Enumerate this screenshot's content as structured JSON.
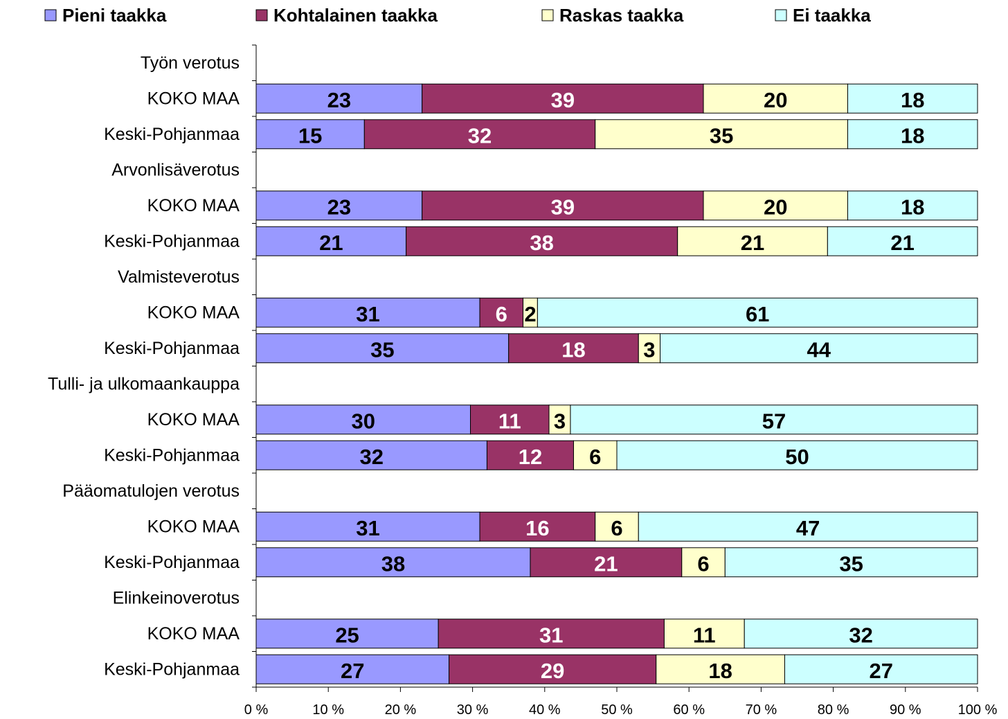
{
  "chart_data": {
    "type": "bar",
    "orientation": "horizontal",
    "stacking": "percent",
    "categories": [
      "Työn verotus",
      "KOKO MAA",
      "Keski-Pohjanmaa",
      "Arvonlisäverotus",
      "KOKO MAA",
      "Keski-Pohjanmaa",
      "Valmisteverotus",
      "KOKO MAA",
      "Keski-Pohjanmaa",
      "Tulli- ja ulkomaankauppa",
      "KOKO MAA",
      "Keski-Pohjanmaa",
      "Pääomatulojen verotus",
      "KOKO MAA",
      "Keski-Pohjanmaa",
      "Elinkeinoverotus",
      "KOKO MAA",
      "Keski-Pohjanmaa"
    ],
    "series": [
      {
        "name": "Pieni taakka",
        "color": "#9999ff",
        "values": [
          null,
          23,
          15,
          null,
          23,
          21,
          null,
          31,
          35,
          null,
          30,
          32,
          null,
          31,
          38,
          null,
          25,
          27
        ]
      },
      {
        "name": "Kohtalainen taakka",
        "color": "#993366",
        "values": [
          null,
          39,
          32,
          null,
          39,
          38,
          null,
          6,
          18,
          null,
          11,
          12,
          null,
          16,
          21,
          null,
          31,
          29
        ]
      },
      {
        "name": "Raskas taakka",
        "color": "#ffffcc",
        "values": [
          null,
          20,
          35,
          null,
          20,
          21,
          null,
          2,
          3,
          null,
          3,
          6,
          null,
          6,
          6,
          null,
          11,
          18
        ]
      },
      {
        "name": "Ei taakka",
        "color": "#ccffff",
        "values": [
          null,
          18,
          18,
          null,
          18,
          21,
          null,
          61,
          44,
          null,
          57,
          50,
          null,
          47,
          35,
          null,
          32,
          27
        ]
      }
    ],
    "xlim": [
      0,
      100
    ],
    "xticks": [
      {
        "value": 0,
        "label": "0 %"
      },
      {
        "value": 10,
        "label": "10 %"
      },
      {
        "value": 20,
        "label": "20 %"
      },
      {
        "value": 30,
        "label": "30 %"
      },
      {
        "value": 40,
        "label": "40 %"
      },
      {
        "value": 50,
        "label": "50 %"
      },
      {
        "value": 60,
        "label": "60 %"
      },
      {
        "value": 70,
        "label": "70 %"
      },
      {
        "value": 80,
        "label": "80 %"
      },
      {
        "value": 90,
        "label": "90 %"
      },
      {
        "value": 100,
        "label": "100 %"
      }
    ],
    "legend": "top",
    "data_labels": true
  }
}
